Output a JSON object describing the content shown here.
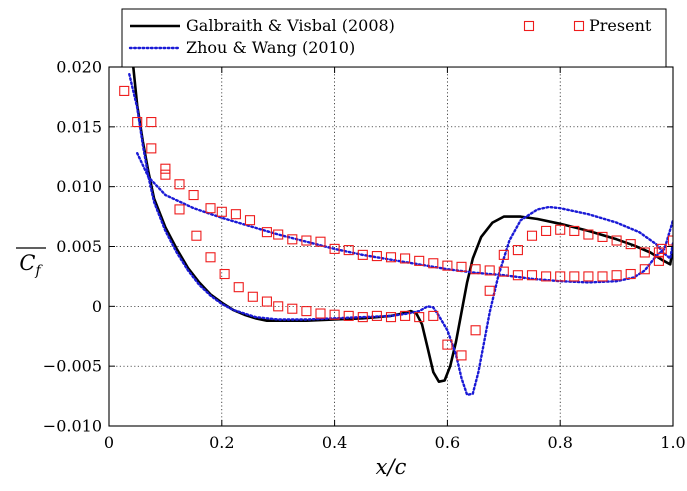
{
  "chart_data": {
    "type": "line",
    "xlabel": "x/c",
    "ylabel": "C_f",
    "xlim": [
      0,
      1.0
    ],
    "ylim": [
      -0.01,
      0.02
    ],
    "x_ticks": [
      0,
      0.2,
      0.4,
      0.6,
      0.8,
      1.0
    ],
    "x_tick_labels": [
      "0",
      "0.2",
      "0.4",
      "0.6",
      "0.8",
      "1.0"
    ],
    "y_ticks": [
      -0.01,
      -0.005,
      0,
      0.005,
      0.01,
      0.015,
      0.02
    ],
    "y_tick_labels": [
      "−0.010",
      "−0.005",
      "0",
      "0.005",
      "0.010",
      "0.015",
      "0.020"
    ],
    "grid": true,
    "legend_position": "top",
    "series": [
      {
        "name": "Galbraith & Visbal (2008)",
        "style": "solid",
        "color": "#000000",
        "segments": [
          [
            [
              0.043,
              0.02
            ],
            [
              0.05,
              0.0168
            ],
            [
              0.06,
              0.0138
            ],
            [
              0.07,
              0.0112
            ],
            [
              0.08,
              0.009
            ],
            [
              0.1,
              0.0066
            ],
            [
              0.12,
              0.0048
            ],
            [
              0.14,
              0.0032
            ],
            [
              0.16,
              0.002
            ],
            [
              0.18,
              0.001
            ],
            [
              0.2,
              0.0003
            ],
            [
              0.22,
              -0.0003
            ],
            [
              0.24,
              -0.0007
            ],
            [
              0.26,
              -0.001
            ],
            [
              0.28,
              -0.0012
            ],
            [
              0.3,
              -0.0012
            ],
            [
              0.35,
              -0.0012
            ],
            [
              0.4,
              -0.0011
            ],
            [
              0.45,
              -0.001
            ],
            [
              0.5,
              -0.0008
            ],
            [
              0.52,
              -0.0006
            ],
            [
              0.535,
              -0.0004
            ],
            [
              0.545,
              -0.0006
            ],
            [
              0.555,
              -0.0015
            ],
            [
              0.565,
              -0.0035
            ],
            [
              0.575,
              -0.0055
            ],
            [
              0.585,
              -0.0063
            ],
            [
              0.595,
              -0.0062
            ],
            [
              0.605,
              -0.005
            ],
            [
              0.615,
              -0.003
            ],
            [
              0.625,
              -0.0005
            ],
            [
              0.635,
              0.002
            ],
            [
              0.645,
              0.004
            ],
            [
              0.66,
              0.0058
            ],
            [
              0.68,
              0.007
            ],
            [
              0.7,
              0.0075
            ],
            [
              0.73,
              0.0075
            ],
            [
              0.76,
              0.0073
            ],
            [
              0.8,
              0.0069
            ],
            [
              0.85,
              0.0063
            ],
            [
              0.9,
              0.0056
            ],
            [
              0.93,
              0.0051
            ],
            [
              0.96,
              0.0045
            ],
            [
              0.98,
              0.0039
            ],
            [
              0.995,
              0.0035
            ],
            [
              1.0,
              0.0049
            ]
          ]
        ]
      },
      {
        "name": "Zhou & Wang (2010)",
        "style": "dotted",
        "color": "#1a1ad6",
        "segments": [
          [
            [
              0.036,
              0.0194
            ],
            [
              0.05,
              0.0166
            ],
            [
              0.06,
              0.0135
            ],
            [
              0.07,
              0.0108
            ],
            [
              0.08,
              0.0087
            ],
            [
              0.1,
              0.0063
            ],
            [
              0.12,
              0.0045
            ],
            [
              0.14,
              0.003
            ],
            [
              0.16,
              0.0018
            ],
            [
              0.18,
              0.0009
            ],
            [
              0.2,
              0.0002
            ],
            [
              0.22,
              -0.0003
            ],
            [
              0.24,
              -0.0006
            ],
            [
              0.26,
              -0.0009
            ],
            [
              0.28,
              -0.001
            ],
            [
              0.3,
              -0.0011
            ],
            [
              0.35,
              -0.0011
            ],
            [
              0.4,
              -0.001
            ],
            [
              0.45,
              -0.0009
            ],
            [
              0.5,
              -0.0008
            ],
            [
              0.53,
              -0.0006
            ],
            [
              0.55,
              -0.0004
            ],
            [
              0.565,
              0.0
            ],
            [
              0.575,
              -0.0001
            ],
            [
              0.585,
              -0.0008
            ],
            [
              0.6,
              -0.002
            ],
            [
              0.615,
              -0.004
            ],
            [
              0.625,
              -0.006
            ],
            [
              0.635,
              -0.0074
            ],
            [
              0.645,
              -0.0073
            ],
            [
              0.655,
              -0.0055
            ],
            [
              0.665,
              -0.003
            ],
            [
              0.675,
              -0.0005
            ],
            [
              0.69,
              0.0025
            ],
            [
              0.71,
              0.0055
            ],
            [
              0.73,
              0.0072
            ],
            [
              0.76,
              0.0081
            ],
            [
              0.78,
              0.0083
            ],
            [
              0.8,
              0.0082
            ],
            [
              0.85,
              0.0077
            ],
            [
              0.9,
              0.007
            ],
            [
              0.94,
              0.0062
            ],
            [
              0.97,
              0.0052
            ],
            [
              0.985,
              0.0044
            ],
            [
              0.995,
              0.004
            ],
            [
              1.0,
              0.0053
            ]
          ],
          [
            [
              0.05,
              0.0128
            ],
            [
              0.07,
              0.0108
            ],
            [
              0.1,
              0.0093
            ],
            [
              0.15,
              0.0082
            ],
            [
              0.2,
              0.0074
            ],
            [
              0.25,
              0.0067
            ],
            [
              0.3,
              0.006
            ],
            [
              0.35,
              0.0054
            ],
            [
              0.4,
              0.0048
            ],
            [
              0.45,
              0.0043
            ],
            [
              0.5,
              0.0039
            ],
            [
              0.55,
              0.0035
            ],
            [
              0.6,
              0.0031
            ],
            [
              0.65,
              0.0028
            ],
            [
              0.7,
              0.0026
            ],
            [
              0.75,
              0.0023
            ],
            [
              0.8,
              0.0021
            ],
            [
              0.85,
              0.002
            ],
            [
              0.9,
              0.0021
            ],
            [
              0.93,
              0.0024
            ],
            [
              0.95,
              0.003
            ],
            [
              0.97,
              0.0042
            ],
            [
              0.985,
              0.0048
            ],
            [
              1.0,
              0.0072
            ]
          ]
        ]
      },
      {
        "name": "Present",
        "style": "markers",
        "marker": "square",
        "color": "#ee1c1c",
        "points": [
          [
            0.027,
            0.018
          ],
          [
            0.05,
            0.0154
          ],
          [
            0.075,
            0.0154
          ],
          [
            0.075,
            0.0132
          ],
          [
            0.1,
            0.0115
          ],
          [
            0.1,
            0.011
          ],
          [
            0.125,
            0.0102
          ],
          [
            0.125,
            0.0081
          ],
          [
            0.15,
            0.0093
          ],
          [
            0.155,
            0.0059
          ],
          [
            0.18,
            0.0082
          ],
          [
            0.18,
            0.0041
          ],
          [
            0.2,
            0.0079
          ],
          [
            0.205,
            0.0027
          ],
          [
            0.225,
            0.0077
          ],
          [
            0.23,
            0.0016
          ],
          [
            0.25,
            0.0072
          ],
          [
            0.255,
            0.0008
          ],
          [
            0.28,
            0.0062
          ],
          [
            0.28,
            0.0004
          ],
          [
            0.3,
            0.006
          ],
          [
            0.3,
            0.0
          ],
          [
            0.325,
            0.0056
          ],
          [
            0.325,
            -0.0002
          ],
          [
            0.35,
            0.0055
          ],
          [
            0.35,
            -0.0004
          ],
          [
            0.375,
            0.0054
          ],
          [
            0.375,
            -0.0006
          ],
          [
            0.4,
            0.0048
          ],
          [
            0.4,
            -0.0007
          ],
          [
            0.425,
            0.0047
          ],
          [
            0.425,
            -0.0008
          ],
          [
            0.45,
            0.0043
          ],
          [
            0.45,
            -0.0009
          ],
          [
            0.475,
            0.0042
          ],
          [
            0.475,
            -0.0008
          ],
          [
            0.5,
            0.0041
          ],
          [
            0.5,
            -0.0009
          ],
          [
            0.525,
            0.004
          ],
          [
            0.525,
            -0.0008
          ],
          [
            0.55,
            0.0038
          ],
          [
            0.55,
            -0.0009
          ],
          [
            0.575,
            0.0036
          ],
          [
            0.575,
            -0.0008
          ],
          [
            0.6,
            0.0034
          ],
          [
            0.6,
            -0.0032
          ],
          [
            0.625,
            0.0033
          ],
          [
            0.625,
            -0.0041
          ],
          [
            0.65,
            0.0031
          ],
          [
            0.65,
            -0.002
          ],
          [
            0.675,
            0.003
          ],
          [
            0.675,
            0.0013
          ],
          [
            0.7,
            0.0029
          ],
          [
            0.7,
            0.0043
          ],
          [
            0.725,
            0.0026
          ],
          [
            0.725,
            0.0047
          ],
          [
            0.75,
            0.0026
          ],
          [
            0.75,
            0.0059
          ],
          [
            0.775,
            0.0025
          ],
          [
            0.775,
            0.0063
          ],
          [
            0.8,
            0.0025
          ],
          [
            0.8,
            0.0064
          ],
          [
            0.825,
            0.0025
          ],
          [
            0.825,
            0.0063
          ],
          [
            0.85,
            0.0025
          ],
          [
            0.85,
            0.006
          ],
          [
            0.875,
            0.0025
          ],
          [
            0.875,
            0.0058
          ],
          [
            0.9,
            0.0026
          ],
          [
            0.9,
            0.0055
          ],
          [
            0.925,
            0.0027
          ],
          [
            0.925,
            0.0052
          ],
          [
            0.95,
            0.0031
          ],
          [
            0.95,
            0.0045
          ],
          [
            0.975,
            0.0038
          ],
          [
            0.975,
            0.0045
          ],
          [
            0.98,
            0.0048
          ],
          [
            1.0,
            0.0055
          ]
        ]
      }
    ]
  }
}
